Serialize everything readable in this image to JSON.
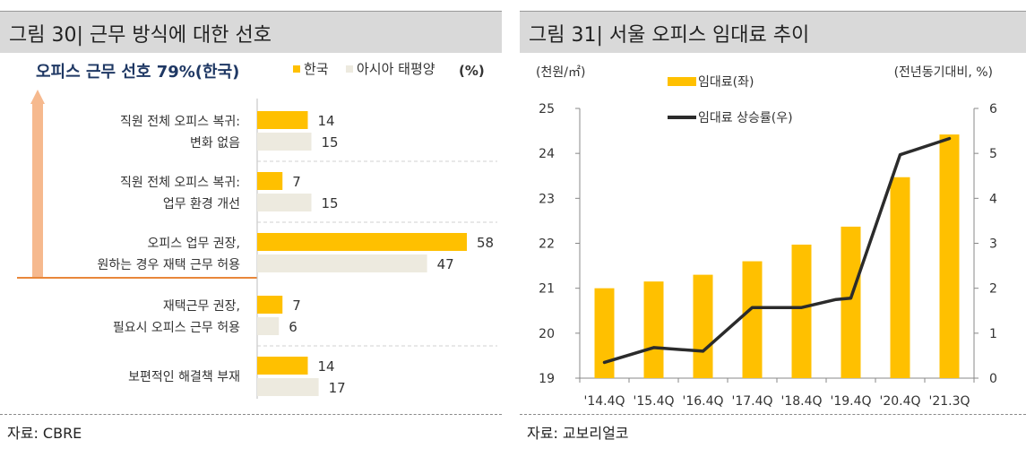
{
  "colors": {
    "korea": "#FFC000",
    "apac": "#EDEADF",
    "arrow": "#F6B98E",
    "line": "#2b2b2b",
    "accent_line": "#E8873A",
    "title_text": "#1F3864"
  },
  "left": {
    "figure_title": "그림 30| 근무 방식에 대한 선호",
    "source": "자료: CBRE",
    "chart_data": {
      "type": "bar",
      "orientation": "horizontal",
      "title": "오피스 근무 선호 79%(한국)",
      "unit": "(%)",
      "legend": [
        "한국",
        "아시아 태평양"
      ],
      "categories": [
        [
          "직원 전체 오피스 복귀:",
          "변화 없음"
        ],
        [
          "직원 전체 오피스 복귀:",
          "업무 환경 개선"
        ],
        [
          "오피스 업무 권장,",
          "원하는 경우 재택 근무 허용"
        ],
        [
          "재택근무 권장,",
          "필요시 오피스 근무 허용"
        ],
        [
          "보편적인 해결책 부재"
        ]
      ],
      "series": [
        {
          "name": "한국",
          "values": [
            14,
            7,
            58,
            7,
            14
          ]
        },
        {
          "name": "아시아 태평양",
          "values": [
            15,
            15,
            47,
            6,
            17
          ]
        }
      ]
    }
  },
  "right": {
    "figure_title": "그림 31| 서울 오피스 임대료 추이",
    "source": "자료: 교보리얼코",
    "chart_data": {
      "type": "bar",
      "title": "",
      "categories": [
        "'14.4Q",
        "'15.4Q",
        "'16.4Q",
        "'17.4Q",
        "'18.4Q",
        "'19.4Q",
        "'20.4Q",
        "'21.3Q"
      ],
      "left_axis_label": "(천원/㎡)",
      "right_axis_label": "(전년동기대비, %)",
      "ylim": [
        19,
        25
      ],
      "y2lim": [
        0,
        6
      ],
      "left_ticks": [
        19,
        20,
        21,
        22,
        23,
        24,
        25
      ],
      "right_ticks": [
        0,
        1,
        2,
        3,
        4,
        5,
        6
      ],
      "series": [
        {
          "name": "임대료(좌)",
          "type": "bar",
          "axis": "left",
          "values": [
            21.0,
            21.15,
            21.3,
            21.6,
            21.97,
            22.37,
            23.47,
            24.42
          ]
        },
        {
          "name": "임대료 상승률(우)",
          "type": "line",
          "axis": "right",
          "points": [
            [
              0,
              0.35
            ],
            [
              1,
              0.68
            ],
            [
              2,
              0.6
            ],
            [
              3,
              1.57
            ],
            [
              4,
              1.57
            ],
            [
              4.7,
              1.75
            ],
            [
              5,
              1.78
            ],
            [
              6,
              4.97
            ],
            [
              7,
              5.33
            ]
          ]
        }
      ]
    }
  }
}
